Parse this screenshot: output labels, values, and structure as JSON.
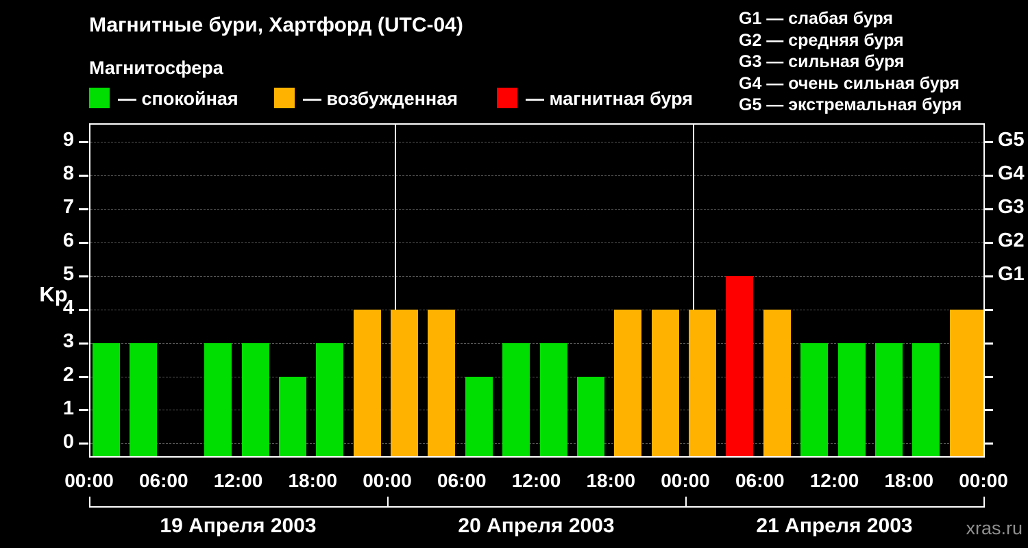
{
  "title": "Магнитные бури, Хартфорд (UTC-04)",
  "legend": {
    "heading": "Магнитосфера",
    "items": [
      {
        "name": "quiet",
        "label": "— спокойная",
        "color": "#00dd00"
      },
      {
        "name": "excited",
        "label": "— возбужденная",
        "color": "#ffb300"
      },
      {
        "name": "storm",
        "label": "— магнитная буря",
        "color": "#ff0000"
      }
    ]
  },
  "storm_scale": [
    "G1 — слабая буря",
    "G2 — средняя буря",
    "G3 — сильная буря",
    "G4 — очень сильная буря",
    "G5 — экстремальная буря"
  ],
  "watermark": "xras.ru",
  "chart_data": {
    "type": "bar",
    "title": "Магнитные бури, Хартфорд (UTC-04)",
    "ylabel": "Kp",
    "ylim": [
      0,
      9
    ],
    "y_ticks": [
      0,
      1,
      2,
      3,
      4,
      5,
      6,
      7,
      8,
      9
    ],
    "right_axis": [
      {
        "label": "G1",
        "kp": 5
      },
      {
        "label": "G2",
        "kp": 6
      },
      {
        "label": "G3",
        "kp": 7
      },
      {
        "label": "G4",
        "kp": 8
      },
      {
        "label": "G5",
        "kp": 9
      }
    ],
    "x_time_labels": [
      "00:00",
      "06:00",
      "12:00",
      "18:00",
      "00:00",
      "06:00",
      "12:00",
      "18:00",
      "00:00",
      "06:00",
      "12:00",
      "18:00",
      "00:00"
    ],
    "interval_hours": 3,
    "days": [
      {
        "label": "19 Апреля 2003",
        "values": [
          3,
          3,
          null,
          3,
          3,
          2,
          3,
          4
        ]
      },
      {
        "label": "20 Апреля 2003",
        "values": [
          4,
          4,
          2,
          3,
          3,
          2,
          4,
          4
        ]
      },
      {
        "label": "21 Апреля 2003",
        "values": [
          4,
          5,
          4,
          3,
          3,
          3,
          3,
          4
        ]
      }
    ],
    "next_day_partial_value": 4,
    "color_thresholds": {
      "green_max_kp": 3,
      "orange_kp": 4,
      "red_min_kp": 5
    },
    "colors": {
      "quiet": "#00dd00",
      "excited": "#ffb300",
      "storm": "#ff0000"
    },
    "grid": "dashed horizontal line at each Kp level",
    "legend_position": "top",
    "day_dividers_after_slots": [
      8,
      16
    ]
  }
}
